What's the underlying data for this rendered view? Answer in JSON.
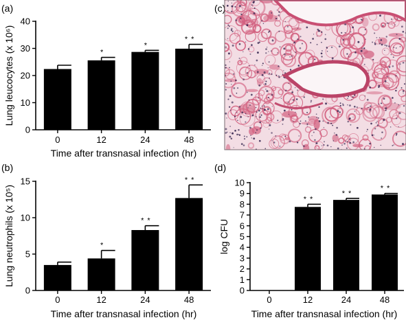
{
  "colors": {
    "bar": "#000000",
    "axis": "#000000",
    "background": "#ffffff"
  },
  "panel_c": {
    "label": "(c)",
    "image_description_icon": "lung-histology-micrograph",
    "colors": {
      "background": "#f3dde4",
      "tissue": "#d2607f",
      "nuclei": "#3b2b55",
      "lumen": "#fbf5f7"
    }
  },
  "chart_data": [
    {
      "panel": "(a)",
      "type": "bar",
      "categories": [
        "0",
        "12",
        "24",
        "48"
      ],
      "values": [
        22.4,
        25.6,
        28.7,
        29.9
      ],
      "errors": [
        1.4,
        1.1,
        0.6,
        1.6
      ],
      "significance": [
        "",
        "*",
        "*",
        "* *"
      ],
      "ylabel": "Lung leucocytes (x 10⁶)",
      "xlabel": "Time after transnasal infection (hr)",
      "ylim": [
        0,
        40
      ],
      "yticks": [
        0,
        10,
        20,
        30,
        40
      ]
    },
    {
      "panel": "(b)",
      "type": "bar",
      "categories": [
        "0",
        "12",
        "24",
        "48"
      ],
      "values": [
        3.5,
        4.4,
        8.3,
        12.7
      ],
      "errors": [
        0.4,
        1.1,
        0.6,
        1.8
      ],
      "significance": [
        "",
        "*",
        "* *",
        "* *"
      ],
      "ylabel": "Lung neutrophils (x 10⁵)",
      "xlabel": "Time after transnasal infection (hr)",
      "ylim": [
        0,
        15
      ],
      "yticks": [
        0,
        5,
        10,
        15
      ]
    },
    {
      "panel": "(d)",
      "type": "bar",
      "categories": [
        "0",
        "12",
        "24",
        "48"
      ],
      "values": [
        0,
        7.75,
        8.4,
        8.9
      ],
      "errors": [
        0,
        0.25,
        0.15,
        0.1
      ],
      "significance": [
        "",
        "* *",
        "* *",
        "* *"
      ],
      "ylabel": "log CFU",
      "xlabel": "Time after transnasal infection (hr)",
      "ylim": [
        0,
        10
      ],
      "yticks": [
        0,
        1,
        2,
        3,
        4,
        5,
        6,
        7,
        8,
        9,
        10
      ]
    }
  ]
}
